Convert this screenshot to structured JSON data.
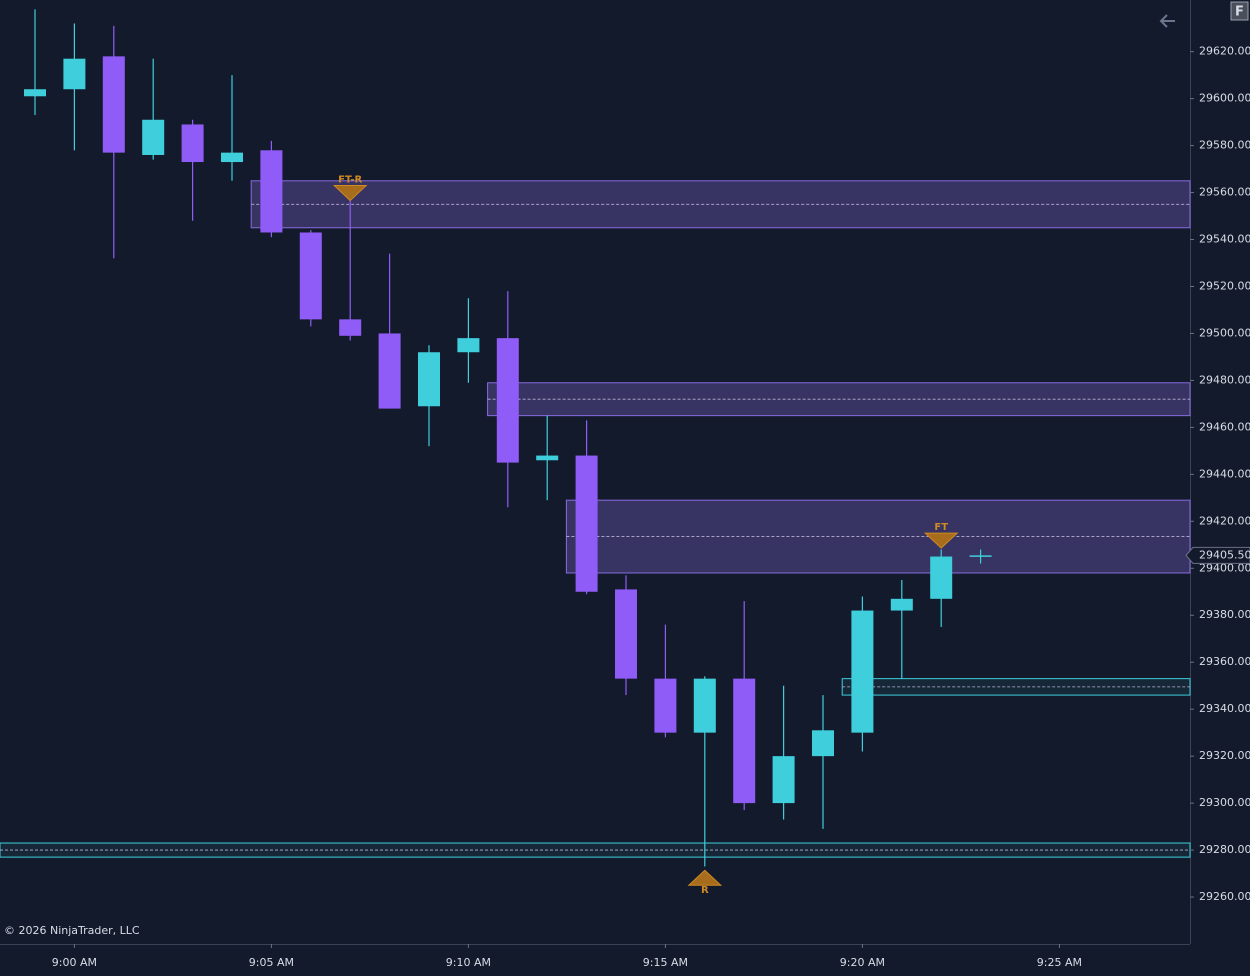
{
  "chart_data": {
    "type": "candlestick",
    "categories": [
      null,
      "9:00 AM",
      null,
      null,
      null,
      null,
      "9:05 AM",
      null,
      null,
      null,
      null,
      "9:10 AM",
      null,
      null,
      null,
      null,
      "9:15 AM",
      null,
      null,
      null,
      null,
      "9:20 AM",
      null,
      null,
      null,
      null,
      "9:25 AM",
      null,
      null,
      null
    ],
    "up_color": "#3fcfdc",
    "down_color": "#8f5cf7",
    "series": [
      {
        "name": null,
        "open": [
          29601,
          29604,
          29618,
          29576,
          29589,
          29573,
          29578,
          29543,
          29506,
          29500,
          29469,
          29492,
          29498,
          29446,
          29448,
          29391,
          29353,
          29330,
          29353,
          29300,
          29320,
          29330,
          29382,
          29387,
          29405,
          null,
          null,
          null,
          null,
          null
        ],
        "high": [
          29638,
          29632,
          29631,
          29617,
          29591,
          29610,
          29582,
          29544,
          29561,
          29534,
          29495,
          29515,
          29518,
          29465,
          29463,
          29397,
          29376,
          29354,
          29386,
          29350,
          29346,
          29388,
          29395,
          29408,
          29408,
          null,
          null,
          null,
          null,
          null
        ],
        "low": [
          29593,
          29578,
          29532,
          29574,
          29548,
          29565,
          29541,
          29503,
          29497,
          29468,
          29452,
          29479,
          29426,
          29429,
          29389,
          29346,
          29328,
          29273,
          29297,
          29293,
          29289,
          29322,
          29353,
          29375,
          29402,
          null,
          null,
          null,
          null,
          null
        ],
        "close": [
          29604,
          29617,
          29577,
          29591,
          29573,
          29577,
          29543,
          29506,
          29499,
          29468,
          29492,
          29498,
          29445,
          29448,
          29390,
          29353,
          29330,
          29353,
          29300,
          29320,
          29331,
          29382,
          29387,
          29405,
          29405.5,
          null,
          null,
          null,
          null,
          null
        ]
      }
    ],
    "zones": [
      {
        "from": 5,
        "top": 29565,
        "bottom": 29545,
        "mid": 29555,
        "color": "#8a6ce0"
      },
      {
        "from": 11,
        "top": 29479,
        "bottom": 29465,
        "mid": 29472,
        "color": "#8a6ce0"
      },
      {
        "from": 13,
        "top": 29429,
        "bottom": 29398,
        "mid": 29413.5,
        "color": "#8a6ce0"
      },
      {
        "from": 20,
        "top": 29353,
        "bottom": 29346,
        "mid": 29349.5,
        "color": "#3fcfdc"
      },
      {
        "from": null,
        "top": 29283,
        "bottom": 29277,
        "mid": 29280,
        "color": "#3fcfdc"
      }
    ],
    "markers": [
      {
        "index": 8,
        "price": 29560,
        "label": "FT-R",
        "direction": "down"
      },
      {
        "index": 17,
        "price": 29268,
        "label": "R",
        "direction": "up"
      },
      {
        "index": 23,
        "price": 29412,
        "label": "FT",
        "direction": "down"
      }
    ],
    "last_price": {
      "value": 29405.5,
      "label": "29405.50"
    },
    "ylim": [
      29240,
      29642
    ],
    "yticks": [
      {
        "value": 29260,
        "label": "29260.00"
      },
      {
        "value": 29280,
        "label": "29280.00"
      },
      {
        "value": 29300,
        "label": "29300.00"
      },
      {
        "value": 29320,
        "label": "29320.00"
      },
      {
        "value": 29340,
        "label": "29340.00"
      },
      {
        "value": 29360,
        "label": "29360.00"
      },
      {
        "value": 29380,
        "label": "29380.00"
      },
      {
        "value": 29400,
        "label": "29400.00"
      },
      {
        "value": 29420,
        "label": "29420.00"
      },
      {
        "value": 29440,
        "label": "29440.00"
      },
      {
        "value": 29460,
        "label": "29460.00"
      },
      {
        "value": 29480,
        "label": "29480.00"
      },
      {
        "value": 29500,
        "label": "29500.00"
      },
      {
        "value": 29520,
        "label": "29520.00"
      },
      {
        "value": 29540,
        "label": "29540.00"
      },
      {
        "value": 29560,
        "label": "29560.00"
      },
      {
        "value": 29580,
        "label": "29580.00"
      },
      {
        "value": 29600,
        "label": "29600.00"
      },
      {
        "value": 29620,
        "label": "29620.00"
      }
    ],
    "copyright": "© 2026 NinjaTrader, LLC",
    "button": "F"
  }
}
